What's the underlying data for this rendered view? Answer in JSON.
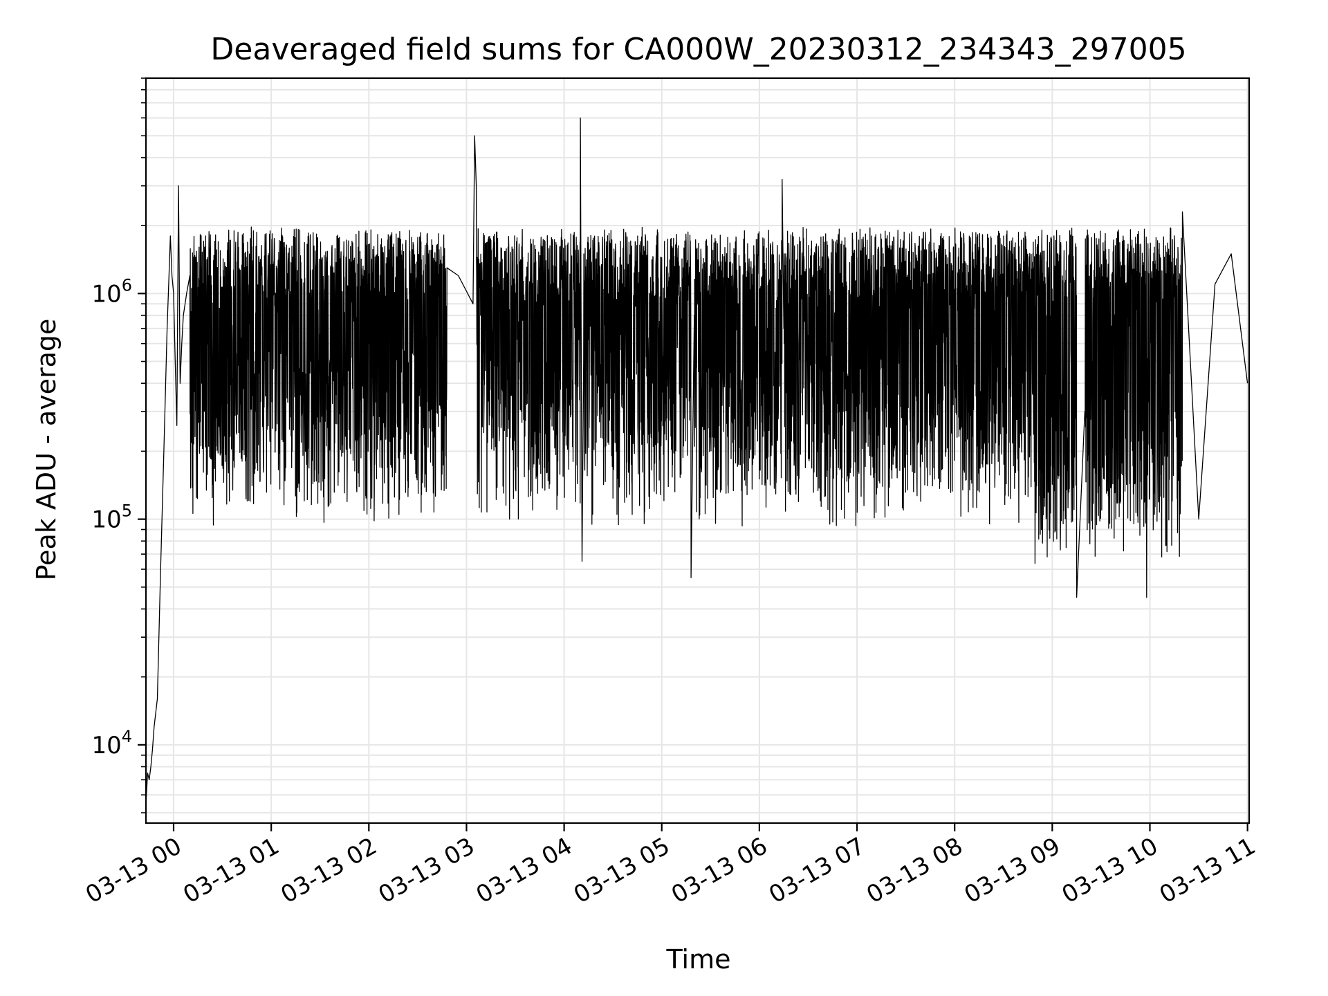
{
  "chart_data": {
    "type": "line",
    "title": "Deaveraged field sums for CA000W_20230312_234343_297005",
    "xlabel": "Time",
    "ylabel": "Peak ADU - average",
    "yscale": "log",
    "ylim": [
      4500,
      9000000
    ],
    "xlim": [
      "03-12 23:43",
      "03-13 11:01"
    ],
    "grid": true,
    "line_color": "#000000",
    "grid_color": "#e6e6e6",
    "x_ticks": [
      {
        "label": "03-13 00",
        "hour": 0
      },
      {
        "label": "03-13 01",
        "hour": 1
      },
      {
        "label": "03-13 02",
        "hour": 2
      },
      {
        "label": "03-13 03",
        "hour": 3
      },
      {
        "label": "03-13 04",
        "hour": 4
      },
      {
        "label": "03-13 05",
        "hour": 5
      },
      {
        "label": "03-13 06",
        "hour": 6
      },
      {
        "label": "03-13 07",
        "hour": 7
      },
      {
        "label": "03-13 08",
        "hour": 8
      },
      {
        "label": "03-13 09",
        "hour": 9
      },
      {
        "label": "03-13 10",
        "hour": 10
      },
      {
        "label": "03-13 11",
        "hour": 11
      }
    ],
    "y_ticks": [
      {
        "base": "10",
        "exp": "4",
        "value": 10000
      },
      {
        "base": "10",
        "exp": "5",
        "value": 100000
      },
      {
        "base": "10",
        "exp": "6",
        "value": 1000000
      }
    ],
    "series": [
      {
        "x": [
          "03-12 23:43",
          "03-12 23:44",
          "03-12 23:45",
          "03-12 23:46",
          "03-12 23:47",
          "03-12 23:48",
          "03-12 23:50",
          "03-12 23:52",
          "03-12 23:54",
          "03-12 23:56",
          "03-12 23:57",
          "03-12 23:58",
          "03-12 23:59",
          "03-13 00:00",
          "03-13 00:01",
          "03-13 00:02",
          "03-13 00:03",
          "03-13 00:04",
          "03-13 00:05",
          "03-13 00:06",
          "03-13 00:08",
          "03-13 00:10",
          "03-13 01:00",
          "03-13 02:00",
          "03-13 02:48",
          "03-13 02:55",
          "03-13 03:04",
          "03-13 03:05",
          "03-13 03:06",
          "03-13 04:10",
          "03-13 04:11",
          "03-13 04:12",
          "03-13 05:18",
          "03-13 05:20",
          "03-13 06:14",
          "03-13 06:15",
          "03-13 08:30",
          "03-13 09:15",
          "03-13 09:20",
          "03-13 09:58",
          "03-13 10:20",
          "03-13 10:30",
          "03-13 10:40",
          "03-13 10:50",
          "03-13 11:00"
        ],
        "y": [
          5500,
          7500,
          7000,
          8000,
          9500,
          12000,
          16000,
          60000,
          200000,
          700000,
          1100000,
          1800000,
          1200000,
          1000000,
          500000,
          260000,
          3000000,
          400000,
          600000,
          800000,
          1000000,
          1200000,
          700000,
          600000,
          1300000,
          1200000,
          900000,
          5000000,
          3000000,
          6000000,
          65000,
          500000,
          55000,
          800000,
          3200000,
          700000,
          600000,
          45000,
          300000,
          45000,
          2300000,
          100000,
          1100000,
          1500000,
          400000
        ]
      }
    ]
  }
}
